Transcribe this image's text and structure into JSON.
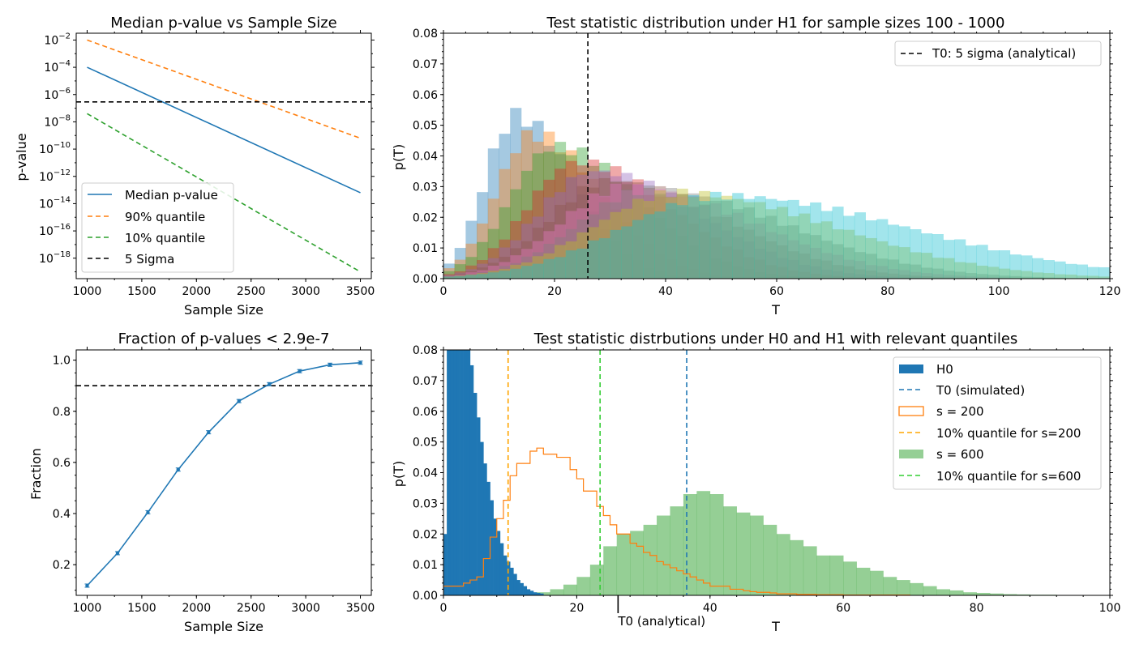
{
  "chart_data": [
    {
      "type": "line",
      "title": "Median p-value vs Sample Size",
      "xlabel": "Sample Size",
      "ylabel": "p-value",
      "xlim": [
        900,
        3600
      ],
      "ylim_log10": [
        -19.5,
        -1.5
      ],
      "yscale": "log",
      "xticks": [
        1000,
        1500,
        2000,
        2500,
        3000,
        3500
      ],
      "yticks_exp": [
        -18,
        -16,
        -14,
        -12,
        -10,
        -8,
        -6,
        -4,
        -2
      ],
      "legend_placement": "lower-left",
      "series": [
        {
          "name": "Median p-value",
          "color": "#1f77b4",
          "style": "solid",
          "x": [
            1000,
            3500
          ],
          "log10_y": [
            -4.0,
            -13.2
          ]
        },
        {
          "name": "90% quantile",
          "color": "#ff7f0e",
          "style": "dashed",
          "x": [
            1000,
            3500
          ],
          "log10_y": [
            -2.0,
            -9.2
          ]
        },
        {
          "name": "10% quantile",
          "color": "#2ca02c",
          "style": "dashed",
          "x": [
            1000,
            3500
          ],
          "log10_y": [
            -7.4,
            -19.0
          ]
        },
        {
          "name": "5 Sigma",
          "color": "#000000",
          "style": "dashed",
          "hline_log10": -6.54
        }
      ]
    },
    {
      "type": "bar",
      "title": "Test statistic distribution under H1 for sample sizes 100 - 1000",
      "xlabel": "T",
      "ylabel": "p(T)",
      "xlim": [
        0,
        120
      ],
      "ylim": [
        0,
        0.08
      ],
      "xticks": [
        0,
        20,
        40,
        60,
        80,
        100,
        120
      ],
      "yticks": [
        "0.00",
        "0.01",
        "0.02",
        "0.03",
        "0.04",
        "0.05",
        "0.06",
        "0.07",
        "0.08"
      ],
      "legend_placement": "top-right",
      "vline": {
        "name": "T0: 5 sigma (analytical)",
        "x": 26,
        "color": "#000000"
      },
      "series": [
        {
          "color": "#1f77b4",
          "mean": 13,
          "sd": 5.5,
          "peak": 0.053
        },
        {
          "color": "#ff7f0e",
          "mean": 16,
          "sd": 6.5,
          "peak": 0.047
        },
        {
          "color": "#2ca02c",
          "mean": 20,
          "sd": 8,
          "peak": 0.043
        },
        {
          "color": "#d62728",
          "mean": 24,
          "sd": 9,
          "peak": 0.038
        },
        {
          "color": "#9467bd",
          "mean": 27,
          "sd": 10,
          "peak": 0.035
        },
        {
          "color": "#8c564b",
          "mean": 30,
          "sd": 11,
          "peak": 0.032
        },
        {
          "color": "#e377c2",
          "mean": 33,
          "sd": 12,
          "peak": 0.03
        },
        {
          "color": "#7f7f7f",
          "mean": 37,
          "sd": 13,
          "peak": 0.029
        },
        {
          "color": "#bcbd22",
          "mean": 42,
          "sd": 15,
          "peak": 0.028
        },
        {
          "color": "#17becf",
          "mean": 50,
          "sd": 18,
          "peak": 0.027
        }
      ]
    },
    {
      "type": "line",
      "title": "Fraction of p-values < 2.9e-7",
      "xlabel": "Sample Size",
      "ylabel": "Fraction",
      "xlim": [
        900,
        3600
      ],
      "ylim": [
        0.08,
        1.04
      ],
      "xticks": [
        1000,
        1500,
        2000,
        2500,
        3000,
        3500
      ],
      "yticks": [
        "0.2",
        "0.4",
        "0.6",
        "0.8",
        "1.0"
      ],
      "hline": 0.9,
      "series": [
        {
          "color": "#1f77b4",
          "x": [
            1000,
            1278,
            1556,
            1833,
            2111,
            2389,
            2667,
            2944,
            3222,
            3500
          ],
          "y": [
            0.118,
            0.245,
            0.405,
            0.572,
            0.718,
            0.84,
            0.906,
            0.957,
            0.982,
            0.99
          ]
        }
      ]
    },
    {
      "type": "bar",
      "title": "Test statistic distrbutions under H0 and H1 with relevant quantiles",
      "xlabel": "T",
      "ylabel": "p(T)",
      "xlim": [
        0,
        100
      ],
      "ylim": [
        0,
        0.08
      ],
      "xticks": [
        0,
        20,
        40,
        60,
        80,
        100
      ],
      "yticks": [
        "0.00",
        "0.01",
        "0.02",
        "0.03",
        "0.04",
        "0.05",
        "0.06",
        "0.07",
        "0.08"
      ],
      "legend_placement": "top-right",
      "annotation": {
        "text": "T0 (analytical)",
        "x": 26.2
      },
      "h0": {
        "name": "H0",
        "color": "#1f77b4",
        "bin_width": 0.5,
        "values": [
          0.02,
          0.08,
          0.12,
          0.11,
          0.1,
          0.095,
          0.09,
          0.082,
          0.075,
          0.066,
          0.058,
          0.05,
          0.043,
          0.037,
          0.031,
          0.025,
          0.021,
          0.017,
          0.013,
          0.011,
          0.009,
          0.007,
          0.005,
          0.004,
          0.003,
          0.002,
          0.0015,
          0.001,
          0.0008,
          0.0006
        ]
      },
      "h0_quantile": {
        "name": "T0 (simulated)",
        "x": 36.5,
        "color": "#1f77b4"
      },
      "s200": {
        "name": "s = 200",
        "color": "#ff7f0e",
        "bin_width": 1,
        "values": [
          0.003,
          0.003,
          0.003,
          0.004,
          0.005,
          0.006,
          0.012,
          0.019,
          0.025,
          0.031,
          0.039,
          0.043,
          0.043,
          0.047,
          0.048,
          0.046,
          0.046,
          0.045,
          0.045,
          0.041,
          0.038,
          0.034,
          0.034,
          0.029,
          0.026,
          0.023,
          0.02,
          0.02,
          0.017,
          0.016,
          0.014,
          0.013,
          0.011,
          0.01,
          0.009,
          0.008,
          0.007,
          0.006,
          0.005,
          0.004,
          0.003,
          0.003,
          0.003,
          0.002,
          0.002,
          0.0015,
          0.0012,
          0.001,
          0.001,
          0.0008,
          0.0005,
          0.0005,
          0.0005,
          0.0003,
          0.0003,
          0.0003,
          0.0002,
          0.0002,
          0.0002,
          0.0002,
          0.0001,
          0.0001,
          0.0001,
          0.0001,
          0.0001,
          0.0001,
          0.0001,
          0.0001,
          0.0001,
          0.0001
        ]
      },
      "s200_quantile": {
        "name": "10% quantile for s=200",
        "x": 9.7,
        "color": "#ffa500"
      },
      "s600": {
        "name": "s = 600",
        "color": "#2ca02c",
        "bin_width": 2,
        "values": [
          0.0,
          0.0,
          0.0,
          0.0,
          0.0,
          0.0,
          0.0005,
          0.001,
          0.002,
          0.0035,
          0.006,
          0.01,
          0.016,
          0.02,
          0.021,
          0.023,
          0.026,
          0.029,
          0.033,
          0.034,
          0.033,
          0.029,
          0.027,
          0.026,
          0.023,
          0.02,
          0.018,
          0.016,
          0.013,
          0.013,
          0.011,
          0.009,
          0.008,
          0.006,
          0.005,
          0.004,
          0.003,
          0.002,
          0.0016,
          0.001,
          0.0008,
          0.0006,
          0.0004,
          0.0003,
          0.0002,
          0.0002,
          0.0001,
          0.0001,
          0.0001,
          0.0001
        ]
      },
      "s600_quantile": {
        "name": "10% quantile for s=600",
        "x": 23.5,
        "color": "#32cd32"
      }
    }
  ]
}
